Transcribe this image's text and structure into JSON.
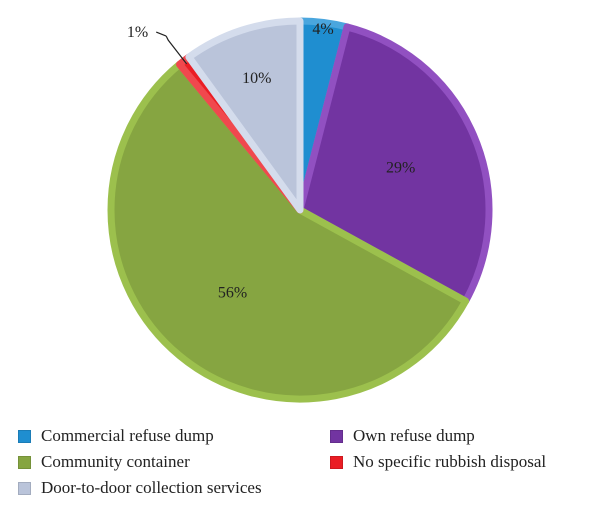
{
  "chart_data": {
    "type": "pie",
    "slices": [
      {
        "label": "Commercial refuse dump",
        "value": 4,
        "value_label": "4%",
        "color": "#1f8ed0",
        "edge": "#4aa6de"
      },
      {
        "label": "Own refuse dump",
        "value": 29,
        "value_label": "29%",
        "color": "#7234a1",
        "edge": "#9150c1"
      },
      {
        "label": "Community container",
        "value": 56,
        "value_label": "56%",
        "color": "#86a541",
        "edge": "#9cc04d"
      },
      {
        "label": "No specific rubbish disposal",
        "value": 1,
        "value_label": "1%",
        "color": "#ea1d24",
        "edge": "#f0484e"
      },
      {
        "label": "Door-to-door collection services",
        "value": 10,
        "value_label": "10%",
        "color": "#bac4da",
        "edge": "#d4dcec"
      }
    ],
    "legend_placement": "bottom",
    "title": ""
  },
  "legend": {
    "items": [
      {
        "label": "Commercial refuse dump",
        "color": "#1f8ed0"
      },
      {
        "label": "Own refuse dump",
        "color": "#7234a1"
      },
      {
        "label": "Community container",
        "color": "#86a541"
      },
      {
        "label": "No specific rubbish disposal",
        "color": "#ea1d24"
      },
      {
        "label": "Door-to-door collection services",
        "color": "#bac4da"
      }
    ]
  }
}
